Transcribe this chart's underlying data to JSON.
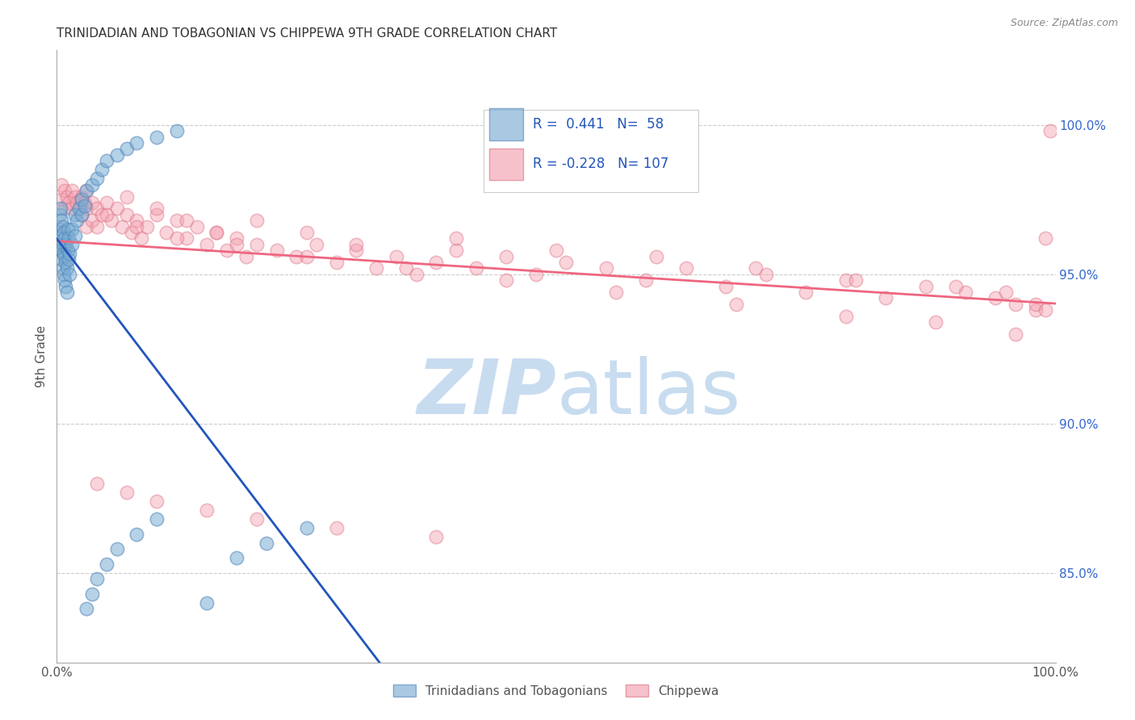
{
  "title": "TRINIDADIAN AND TOBAGONIAN VS CHIPPEWA 9TH GRADE CORRELATION CHART",
  "source": "Source: ZipAtlas.com",
  "ylabel": "9th Grade",
  "yaxis_values": [
    0.85,
    0.9,
    0.95,
    1.0
  ],
  "xaxis_range": [
    0.0,
    1.0
  ],
  "yaxis_range": [
    0.82,
    1.025
  ],
  "blue_color": "#7BADD4",
  "pink_color": "#F4A0B0",
  "blue_line_color": "#2255BB",
  "pink_line_color": "#EE6680",
  "blue_marker_edge": "#5588BB",
  "pink_marker_edge": "#DD7788",
  "legend_blue_label": "Trinidadians and Tobagonians",
  "legend_pink_label": "Chippewa",
  "blue_R": "0.441",
  "blue_N": "58",
  "pink_R": "-0.228",
  "pink_N": "107",
  "blue_x": [
    0.002,
    0.003,
    0.003,
    0.004,
    0.004,
    0.005,
    0.005,
    0.005,
    0.006,
    0.006,
    0.006,
    0.007,
    0.007,
    0.007,
    0.008,
    0.008,
    0.008,
    0.009,
    0.009,
    0.009,
    0.01,
    0.01,
    0.011,
    0.011,
    0.012,
    0.012,
    0.013,
    0.013,
    0.015,
    0.015,
    0.018,
    0.018,
    0.02,
    0.022,
    0.025,
    0.025,
    0.028,
    0.03,
    0.035,
    0.04,
    0.045,
    0.05,
    0.06,
    0.07,
    0.08,
    0.1,
    0.12,
    0.15,
    0.18,
    0.21,
    0.25,
    0.03,
    0.035,
    0.04,
    0.05,
    0.06,
    0.08,
    0.1
  ],
  "blue_y": [
    0.96,
    0.965,
    0.97,
    0.958,
    0.972,
    0.955,
    0.963,
    0.968,
    0.952,
    0.96,
    0.966,
    0.95,
    0.957,
    0.964,
    0.948,
    0.956,
    0.962,
    0.946,
    0.954,
    0.96,
    0.944,
    0.952,
    0.958,
    0.965,
    0.955,
    0.962,
    0.95,
    0.957,
    0.96,
    0.965,
    0.963,
    0.97,
    0.968,
    0.972,
    0.97,
    0.975,
    0.973,
    0.978,
    0.98,
    0.982,
    0.985,
    0.988,
    0.99,
    0.992,
    0.994,
    0.996,
    0.998,
    0.84,
    0.855,
    0.86,
    0.865,
    0.838,
    0.843,
    0.848,
    0.853,
    0.858,
    0.863,
    0.868
  ],
  "pink_x": [
    0.005,
    0.005,
    0.008,
    0.008,
    0.01,
    0.012,
    0.015,
    0.015,
    0.018,
    0.02,
    0.022,
    0.025,
    0.025,
    0.028,
    0.03,
    0.03,
    0.03,
    0.035,
    0.035,
    0.04,
    0.04,
    0.045,
    0.05,
    0.055,
    0.06,
    0.065,
    0.07,
    0.075,
    0.08,
    0.085,
    0.09,
    0.1,
    0.11,
    0.12,
    0.13,
    0.14,
    0.15,
    0.16,
    0.17,
    0.18,
    0.19,
    0.2,
    0.22,
    0.24,
    0.26,
    0.28,
    0.3,
    0.32,
    0.34,
    0.36,
    0.38,
    0.4,
    0.42,
    0.45,
    0.48,
    0.51,
    0.55,
    0.59,
    0.63,
    0.67,
    0.71,
    0.75,
    0.79,
    0.83,
    0.87,
    0.91,
    0.94,
    0.96,
    0.98,
    0.99,
    0.995,
    0.07,
    0.1,
    0.13,
    0.16,
    0.2,
    0.25,
    0.3,
    0.4,
    0.5,
    0.6,
    0.7,
    0.8,
    0.9,
    0.95,
    0.98,
    0.99,
    0.025,
    0.05,
    0.08,
    0.12,
    0.18,
    0.25,
    0.35,
    0.45,
    0.56,
    0.68,
    0.79,
    0.88,
    0.96,
    0.04,
    0.07,
    0.1,
    0.15,
    0.2,
    0.28,
    0.38
  ],
  "pink_y": [
    0.98,
    0.975,
    0.978,
    0.972,
    0.976,
    0.974,
    0.978,
    0.972,
    0.976,
    0.974,
    0.972,
    0.976,
    0.97,
    0.974,
    0.978,
    0.972,
    0.966,
    0.974,
    0.968,
    0.972,
    0.966,
    0.97,
    0.974,
    0.968,
    0.972,
    0.966,
    0.97,
    0.964,
    0.968,
    0.962,
    0.966,
    0.97,
    0.964,
    0.968,
    0.962,
    0.966,
    0.96,
    0.964,
    0.958,
    0.962,
    0.956,
    0.96,
    0.958,
    0.956,
    0.96,
    0.954,
    0.958,
    0.952,
    0.956,
    0.95,
    0.954,
    0.958,
    0.952,
    0.956,
    0.95,
    0.954,
    0.952,
    0.948,
    0.952,
    0.946,
    0.95,
    0.944,
    0.948,
    0.942,
    0.946,
    0.944,
    0.942,
    0.94,
    0.938,
    0.962,
    0.998,
    0.976,
    0.972,
    0.968,
    0.964,
    0.968,
    0.964,
    0.96,
    0.962,
    0.958,
    0.956,
    0.952,
    0.948,
    0.946,
    0.944,
    0.94,
    0.938,
    0.975,
    0.97,
    0.966,
    0.962,
    0.96,
    0.956,
    0.952,
    0.948,
    0.944,
    0.94,
    0.936,
    0.934,
    0.93,
    0.88,
    0.877,
    0.874,
    0.871,
    0.868,
    0.865,
    0.862
  ]
}
